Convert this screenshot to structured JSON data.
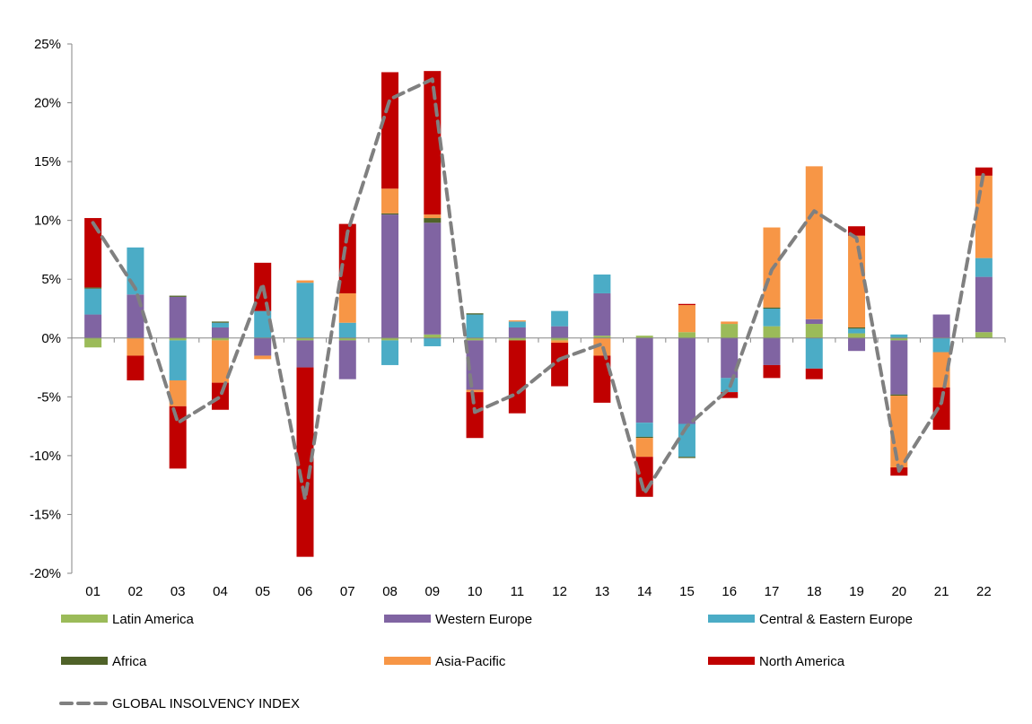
{
  "chart_data": {
    "type": "bar",
    "stacked": true,
    "categories": [
      "01",
      "02",
      "03",
      "04",
      "05",
      "06",
      "07",
      "08",
      "09",
      "10",
      "11",
      "12",
      "13",
      "14",
      "15",
      "16",
      "17",
      "18",
      "19",
      "20",
      "21",
      "22"
    ],
    "ylim": [
      -0.2,
      0.25
    ],
    "yticks": [
      {
        "value": 0.25,
        "label": "25%"
      },
      {
        "value": 0.2,
        "label": "20%"
      },
      {
        "value": 0.15,
        "label": "15%"
      },
      {
        "value": 0.1,
        "label": "10%"
      },
      {
        "value": 0.05,
        "label": "5%"
      },
      {
        "value": 0.0,
        "label": "0%"
      },
      {
        "value": -0.05,
        "label": "-5%"
      },
      {
        "value": -0.1,
        "label": "-10%"
      },
      {
        "value": -0.15,
        "label": "-15%"
      },
      {
        "value": -0.2,
        "label": "-20%"
      }
    ],
    "grid": false,
    "legend_position": "bottom",
    "series": [
      {
        "name": "Latin America",
        "color": "#9BBB59",
        "values": [
          -0.008,
          0.0,
          -0.002,
          -0.002,
          0.0,
          -0.002,
          -0.002,
          -0.002,
          0.003,
          -0.002,
          -0.002,
          -0.002,
          0.002,
          0.002,
          0.005,
          0.012,
          0.01,
          0.012,
          0.004,
          -0.002,
          0.0,
          0.005
        ]
      },
      {
        "name": "Western Europe",
        "color": "#8064A2",
        "values": [
          0.02,
          0.037,
          0.035,
          0.009,
          -0.015,
          -0.023,
          -0.033,
          0.105,
          0.095,
          -0.042,
          0.009,
          0.01,
          0.036,
          -0.072,
          -0.073,
          -0.034,
          -0.023,
          0.004,
          -0.011,
          -0.046,
          0.02,
          0.047
        ]
      },
      {
        "name": "Central & Eastern Europe",
        "color": "#4BACC6",
        "values": [
          0.022,
          0.04,
          -0.034,
          0.004,
          0.023,
          0.047,
          0.013,
          -0.021,
          -0.007,
          0.02,
          0.005,
          0.013,
          0.016,
          -0.012,
          -0.028,
          -0.012,
          0.015,
          -0.026,
          0.004,
          0.003,
          -0.012,
          0.016
        ]
      },
      {
        "name": "Africa",
        "color": "#4F6228",
        "values": [
          0.001,
          0.0,
          0.001,
          0.001,
          0.0,
          0.0,
          0.0,
          0.001,
          0.004,
          0.001,
          0.0,
          0.0,
          0.0,
          -0.001,
          -0.001,
          0.0,
          0.001,
          0.0,
          0.001,
          -0.001,
          0.0,
          0.0
        ]
      },
      {
        "name": "Asia-Pacific",
        "color": "#F79646",
        "values": [
          0.0,
          -0.015,
          -0.022,
          -0.036,
          -0.003,
          0.002,
          0.025,
          0.021,
          0.003,
          -0.002,
          0.001,
          -0.002,
          -0.015,
          -0.016,
          0.023,
          0.002,
          0.068,
          0.13,
          0.078,
          -0.061,
          -0.03,
          0.07
        ]
      },
      {
        "name": "North America",
        "color": "#C00000",
        "values": [
          0.059,
          -0.021,
          -0.053,
          -0.023,
          0.041,
          -0.161,
          0.059,
          0.099,
          0.122,
          -0.039,
          -0.062,
          -0.037,
          -0.04,
          -0.034,
          0.001,
          -0.005,
          -0.011,
          -0.009,
          0.008,
          -0.007,
          -0.036,
          0.007
        ]
      }
    ],
    "line_series": {
      "name": "GLOBAL INSOLVENCY INDEX",
      "color": "#808080",
      "style": "dashed",
      "values": [
        0.098,
        0.042,
        -0.072,
        -0.05,
        0.046,
        -0.137,
        0.09,
        0.203,
        0.22,
        -0.063,
        -0.047,
        -0.018,
        -0.005,
        -0.132,
        -0.075,
        -0.043,
        0.058,
        0.108,
        0.085,
        -0.113,
        -0.055,
        0.142
      ]
    }
  }
}
